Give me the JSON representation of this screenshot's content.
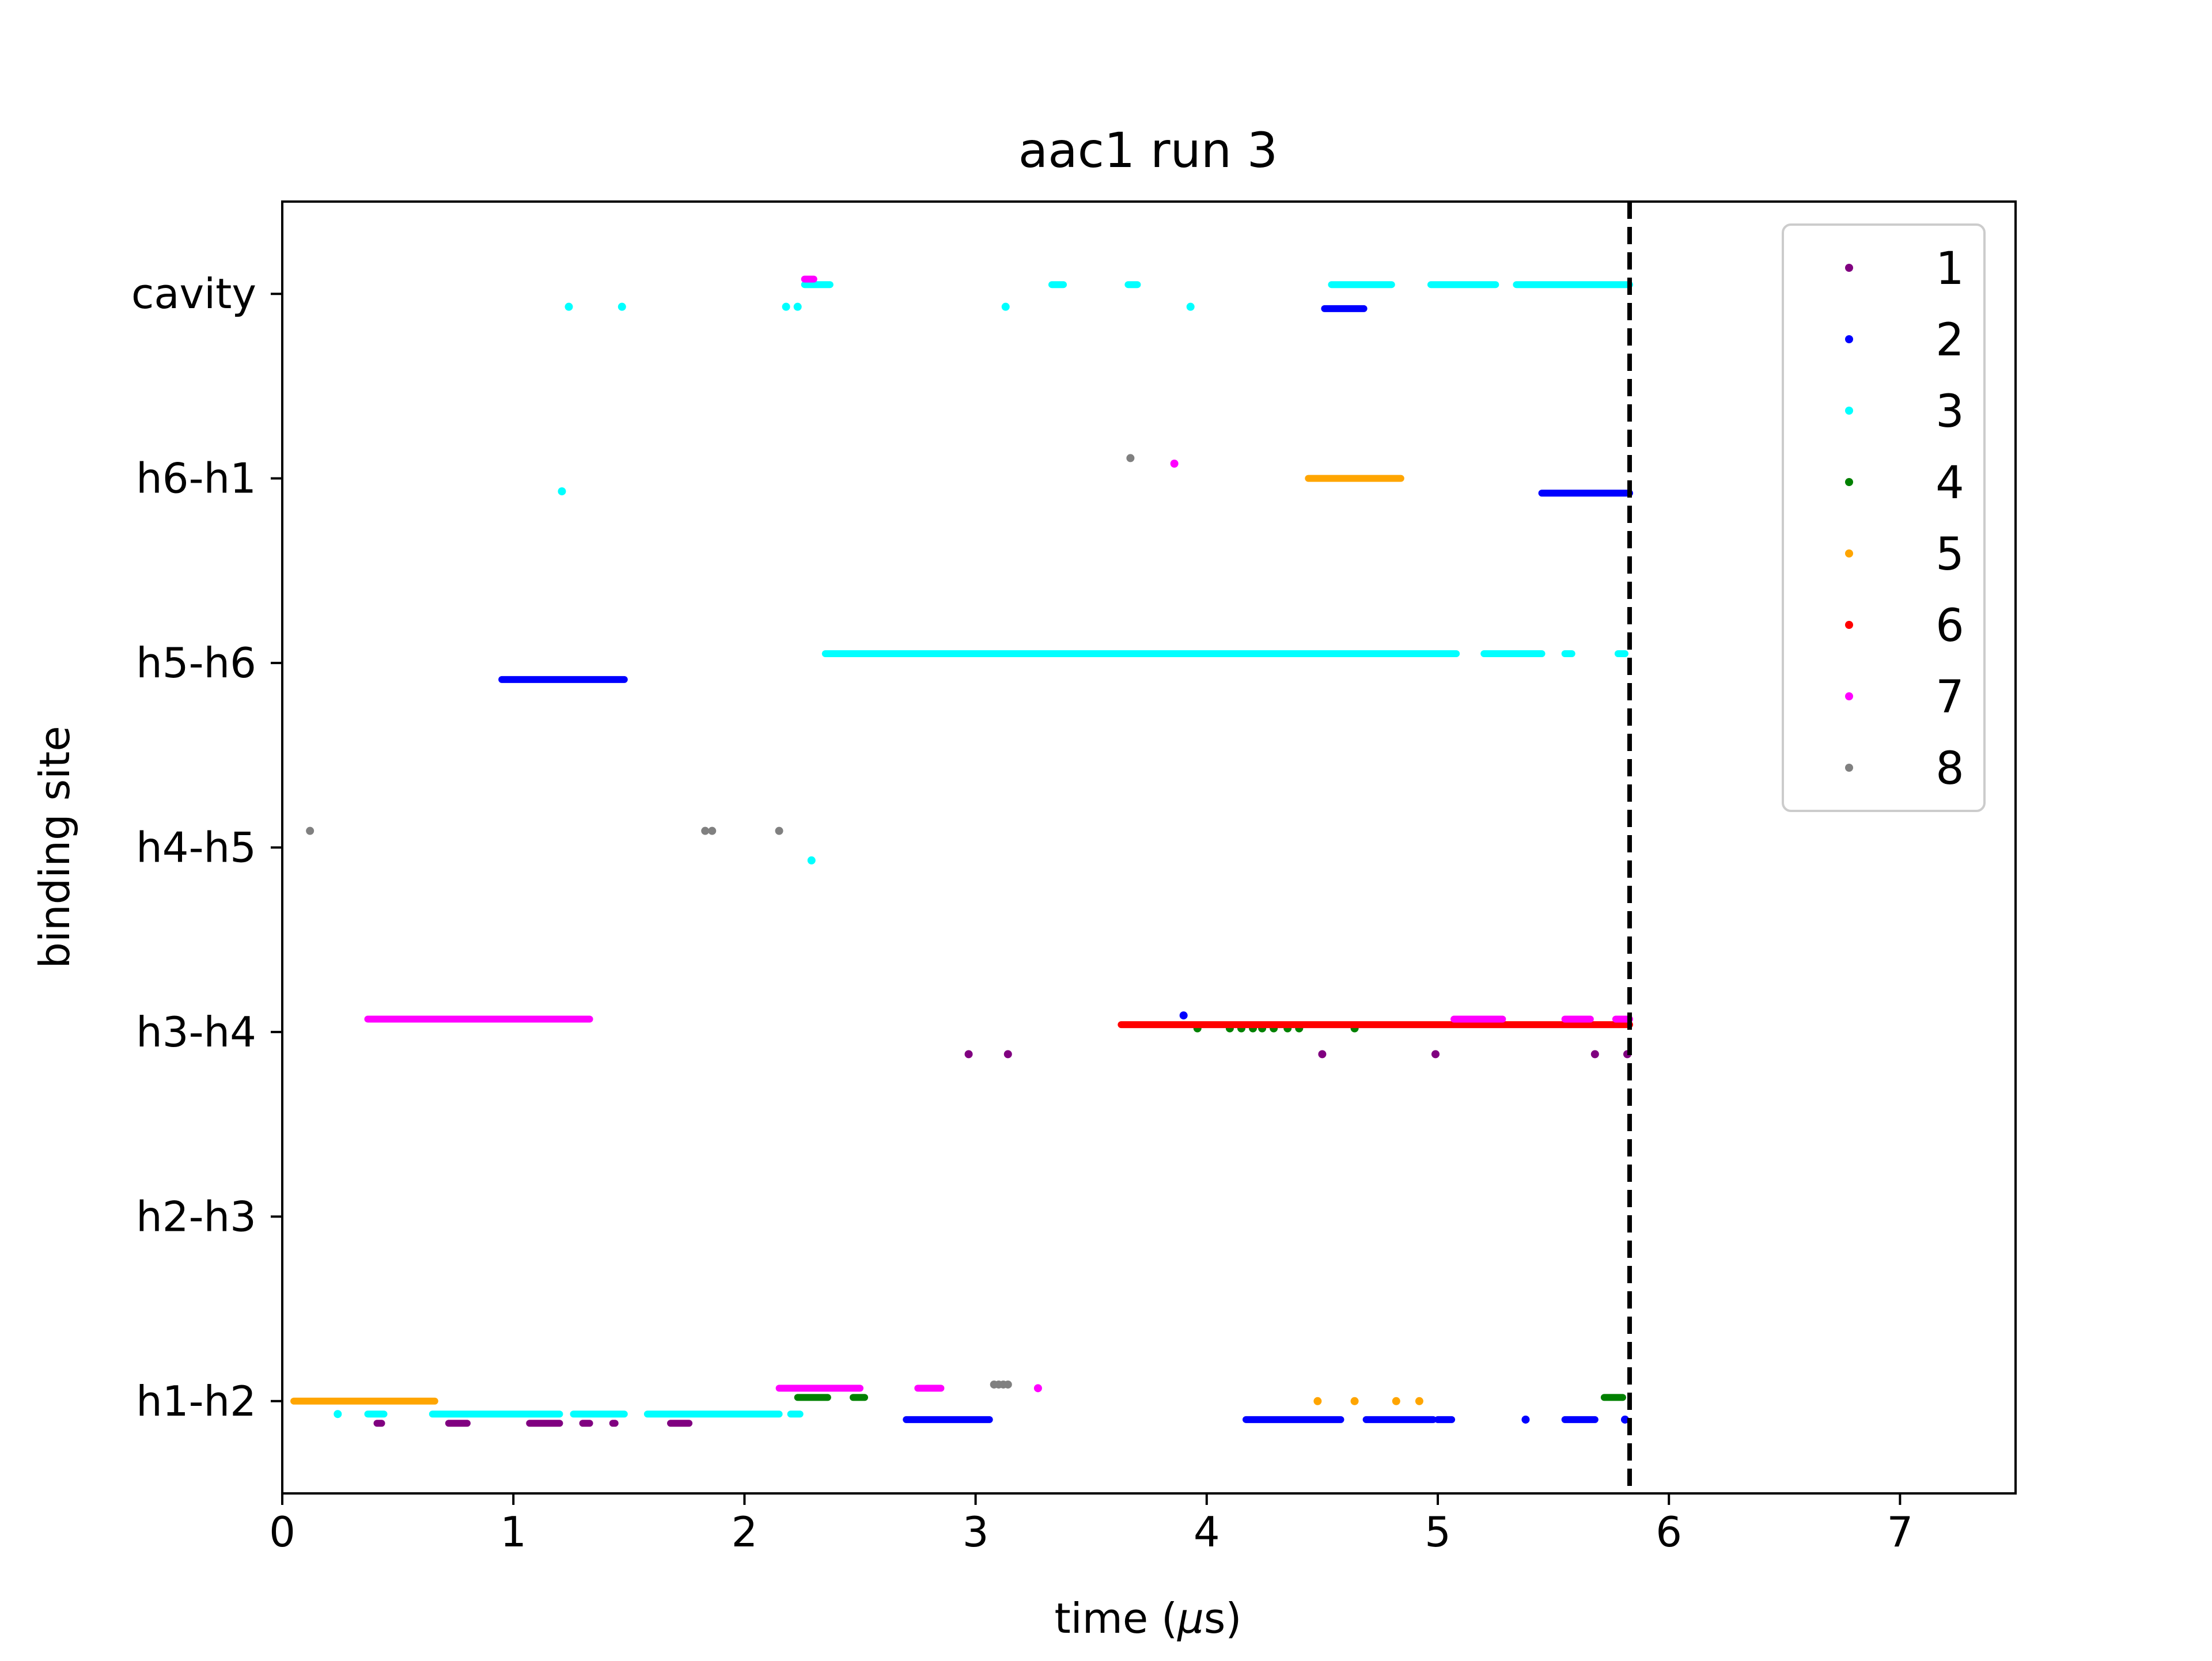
{
  "chart_data": {
    "type": "scatter",
    "title": "aac1 run 3",
    "xlabel_prefix": "time (",
    "xlabel_mu": "μ",
    "xlabel_suffix": "s)",
    "ylabel": "binding site",
    "xlim": [
      0,
      7.5
    ],
    "x_ticks": [
      0,
      1,
      2,
      3,
      4,
      5,
      6,
      7
    ],
    "y_categories": [
      "h1-h2",
      "h2-h3",
      "h3-h4",
      "h4-h5",
      "h5-h6",
      "h6-h1",
      "cavity"
    ],
    "ylim": [
      -0.5,
      6.5
    ],
    "grid": false,
    "legend_position": "upper right",
    "vline": {
      "x": 5.83,
      "style": "dashed",
      "color": "#000000"
    },
    "series": [
      {
        "name": "1",
        "color": "#800080",
        "offset": -0.12,
        "segments": [
          [
            0.41,
            0.43
          ],
          [
            0.72,
            0.8
          ],
          [
            1.07,
            1.2
          ],
          [
            1.3,
            1.33
          ],
          [
            1.43,
            1.44
          ],
          [
            1.68,
            1.76
          ]
        ],
        "points": [
          [
            2.97,
            2
          ],
          [
            3.14,
            2
          ],
          [
            4.5,
            2
          ],
          [
            4.99,
            2
          ],
          [
            5.68,
            2
          ],
          [
            5.82,
            2
          ]
        ],
        "seg_site": 0
      },
      {
        "name": "2",
        "color": "#0000ff",
        "offset": -0.1,
        "segments": [
          [
            2.7,
            3.06
          ],
          [
            4.17,
            4.58
          ],
          [
            4.69,
            4.98
          ],
          [
            5.0,
            5.06
          ],
          [
            5.55,
            5.68
          ]
        ],
        "points": [
          [
            5.38,
            0
          ],
          [
            5.81,
            0
          ],
          [
            3.9,
            2.09
          ]
        ],
        "seg_site": 0,
        "extra_segments": [
          [
            0.95,
            1.48,
            4,
            -0.09
          ],
          [
            4.51,
            4.68,
            6,
            -0.08
          ],
          [
            5.45,
            5.83,
            5,
            -0.08
          ]
        ]
      },
      {
        "name": "3",
        "color": "#00ffff",
        "offset": -0.07,
        "segments": [
          [
            0.37,
            0.44
          ],
          [
            0.65,
            1.2
          ],
          [
            1.26,
            1.48
          ],
          [
            1.58,
            2.15
          ],
          [
            2.2,
            2.24
          ]
        ],
        "points": [
          [
            0.24,
            0
          ],
          [
            1.24,
            6
          ],
          [
            1.47,
            6
          ],
          [
            2.18,
            6
          ],
          [
            2.23,
            6
          ],
          [
            3.13,
            6
          ],
          [
            3.93,
            6
          ],
          [
            1.21,
            5
          ],
          [
            2.29,
            3
          ]
        ],
        "seg_site": 0,
        "extra_segments": [
          [
            2.26,
            2.37,
            6,
            0.05
          ],
          [
            3.33,
            3.38,
            6,
            0.05
          ],
          [
            3.66,
            3.7,
            6,
            0.05
          ],
          [
            4.54,
            4.8,
            6,
            0.05
          ],
          [
            4.97,
            5.25,
            6,
            0.05
          ],
          [
            5.34,
            5.83,
            6,
            0.05
          ],
          [
            2.35,
            5.08,
            4,
            0.05
          ],
          [
            5.2,
            5.45,
            4,
            0.05
          ],
          [
            5.55,
            5.58,
            4,
            0.05
          ],
          [
            5.78,
            5.81,
            4,
            0.05
          ]
        ]
      },
      {
        "name": "4",
        "color": "#008000",
        "offset": 0.02,
        "segments": [
          [
            2.23,
            2.36
          ],
          [
            2.47,
            2.52
          ],
          [
            5.72,
            5.8
          ]
        ],
        "points": [
          [
            3.96,
            2.02
          ],
          [
            4.1,
            2.02
          ],
          [
            4.15,
            2.02
          ],
          [
            4.2,
            2.02
          ],
          [
            4.24,
            2.02
          ],
          [
            4.29,
            2.02
          ],
          [
            4.35,
            2.02
          ],
          [
            4.4,
            2.02
          ],
          [
            4.64,
            2.02
          ]
        ],
        "seg_site": 0
      },
      {
        "name": "5",
        "color": "#ffa500",
        "offset": 0.0,
        "segments": [
          [
            0.05,
            0.66
          ]
        ],
        "points": [
          [
            4.48,
            0.0
          ],
          [
            4.64,
            0.0
          ],
          [
            4.82,
            0.0
          ],
          [
            4.92,
            0.0
          ]
        ],
        "seg_site": 0,
        "extra_segments": [
          [
            4.44,
            4.84,
            5,
            0.0
          ]
        ]
      },
      {
        "name": "6",
        "color": "#ff0000",
        "offset": 0.04,
        "segments": [
          [
            3.63,
            5.83
          ]
        ],
        "points": [],
        "seg_site": 2
      },
      {
        "name": "7",
        "color": "#ff00ff",
        "offset": 0.07,
        "segments": [
          [
            0.37,
            1.33
          ],
          [
            2.15,
            2.5
          ],
          [
            2.65,
            2.67
          ],
          [
            2.75,
            2.85
          ],
          [
            5.07,
            5.28
          ],
          [
            5.55,
            5.66
          ],
          [
            5.77,
            5.83
          ]
        ],
        "points": [
          [
            3.27,
            0.07
          ],
          [
            3.86,
            5.08
          ]
        ],
        "seg_site": 2,
        "extra_segments": [
          [
            2.15,
            2.5,
            0,
            0.07
          ],
          [
            2.75,
            2.85,
            0,
            0.07
          ],
          [
            2.26,
            2.3,
            6,
            0.08
          ]
        ],
        "skip_first_group": [
          1,
          2,
          3
        ]
      },
      {
        "name": "8",
        "color": "#808080",
        "offset": 0.09,
        "segments": [],
        "points": [
          [
            0.12,
            3.09
          ],
          [
            1.83,
            3.09
          ],
          [
            1.86,
            3.09
          ],
          [
            2.15,
            3.09
          ],
          [
            3.67,
            5.11
          ],
          [
            3.08,
            0.09
          ],
          [
            3.1,
            0.09
          ],
          [
            3.12,
            0.09
          ],
          [
            3.14,
            0.09
          ]
        ],
        "seg_site": 0
      }
    ]
  }
}
